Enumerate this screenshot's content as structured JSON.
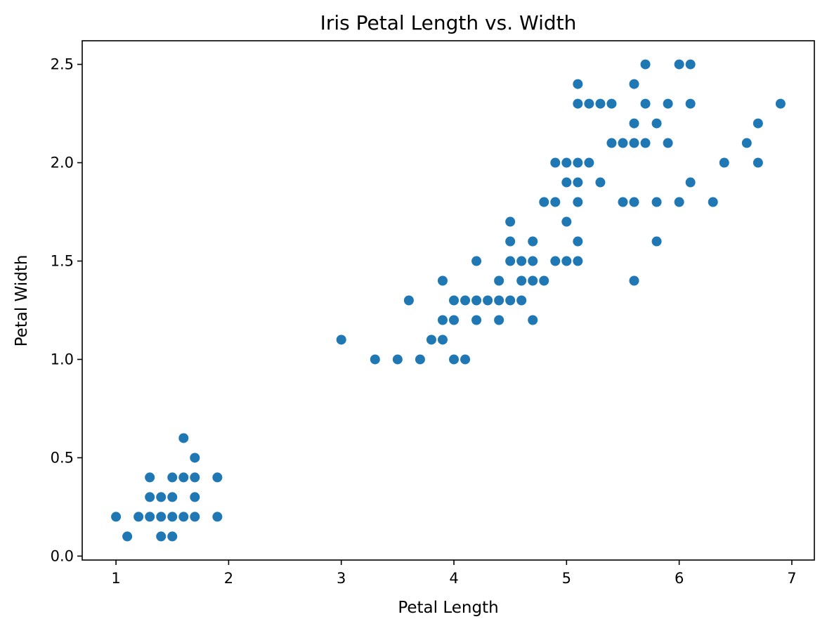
{
  "chart_data": {
    "type": "scatter",
    "title": "Iris Petal Length vs. Width",
    "xlabel": "Petal Length",
    "ylabel": "Petal Width",
    "xlim": [
      0.7,
      7.2
    ],
    "ylim": [
      -0.02,
      2.62
    ],
    "xticks": [
      1,
      2,
      3,
      4,
      5,
      6,
      7
    ],
    "xtick_labels": [
      "1",
      "2",
      "3",
      "4",
      "5",
      "6",
      "7"
    ],
    "yticks": [
      0.0,
      0.5,
      1.0,
      1.5,
      2.0,
      2.5
    ],
    "ytick_labels": [
      "0.0",
      "0.5",
      "1.0",
      "1.5",
      "2.0",
      "2.5"
    ],
    "grid": false,
    "marker_color": "#1f77b4",
    "points": [
      [
        1.0,
        0.2
      ],
      [
        1.1,
        0.1
      ],
      [
        1.2,
        0.2
      ],
      [
        1.3,
        0.2
      ],
      [
        1.3,
        0.3
      ],
      [
        1.3,
        0.4
      ],
      [
        1.4,
        0.1
      ],
      [
        1.4,
        0.2
      ],
      [
        1.4,
        0.3
      ],
      [
        1.5,
        0.1
      ],
      [
        1.5,
        0.2
      ],
      [
        1.5,
        0.3
      ],
      [
        1.5,
        0.4
      ],
      [
        1.6,
        0.2
      ],
      [
        1.6,
        0.4
      ],
      [
        1.6,
        0.6
      ],
      [
        1.7,
        0.2
      ],
      [
        1.7,
        0.3
      ],
      [
        1.7,
        0.4
      ],
      [
        1.7,
        0.5
      ],
      [
        1.9,
        0.2
      ],
      [
        1.9,
        0.4
      ],
      [
        3.0,
        1.1
      ],
      [
        3.3,
        1.0
      ],
      [
        3.5,
        1.0
      ],
      [
        3.6,
        1.3
      ],
      [
        3.7,
        1.0
      ],
      [
        3.8,
        1.1
      ],
      [
        3.9,
        1.1
      ],
      [
        3.9,
        1.2
      ],
      [
        3.9,
        1.4
      ],
      [
        4.0,
        1.0
      ],
      [
        4.0,
        1.2
      ],
      [
        4.0,
        1.3
      ],
      [
        4.1,
        1.0
      ],
      [
        4.1,
        1.3
      ],
      [
        4.2,
        1.2
      ],
      [
        4.2,
        1.3
      ],
      [
        4.2,
        1.5
      ],
      [
        4.3,
        1.3
      ],
      [
        4.4,
        1.2
      ],
      [
        4.4,
        1.3
      ],
      [
        4.4,
        1.4
      ],
      [
        4.5,
        1.3
      ],
      [
        4.5,
        1.5
      ],
      [
        4.5,
        1.6
      ],
      [
        4.5,
        1.7
      ],
      [
        4.6,
        1.3
      ],
      [
        4.6,
        1.4
      ],
      [
        4.6,
        1.5
      ],
      [
        4.7,
        1.2
      ],
      [
        4.7,
        1.4
      ],
      [
        4.7,
        1.5
      ],
      [
        4.7,
        1.6
      ],
      [
        4.8,
        1.4
      ],
      [
        4.8,
        1.8
      ],
      [
        4.9,
        1.5
      ],
      [
        4.9,
        1.8
      ],
      [
        4.9,
        2.0
      ],
      [
        5.0,
        1.5
      ],
      [
        5.0,
        1.7
      ],
      [
        5.0,
        1.9
      ],
      [
        5.0,
        2.0
      ],
      [
        5.1,
        1.5
      ],
      [
        5.1,
        1.6
      ],
      [
        5.1,
        1.8
      ],
      [
        5.1,
        1.9
      ],
      [
        5.1,
        2.0
      ],
      [
        5.1,
        2.3
      ],
      [
        5.1,
        2.4
      ],
      [
        5.2,
        2.0
      ],
      [
        5.2,
        2.3
      ],
      [
        5.3,
        1.9
      ],
      [
        5.3,
        2.3
      ],
      [
        5.4,
        2.1
      ],
      [
        5.4,
        2.3
      ],
      [
        5.5,
        1.8
      ],
      [
        5.5,
        2.1
      ],
      [
        5.6,
        1.4
      ],
      [
        5.6,
        1.8
      ],
      [
        5.6,
        2.1
      ],
      [
        5.6,
        2.2
      ],
      [
        5.6,
        2.4
      ],
      [
        5.7,
        2.1
      ],
      [
        5.7,
        2.3
      ],
      [
        5.7,
        2.5
      ],
      [
        5.8,
        1.6
      ],
      [
        5.8,
        1.8
      ],
      [
        5.8,
        2.2
      ],
      [
        5.9,
        2.1
      ],
      [
        5.9,
        2.3
      ],
      [
        6.0,
        1.8
      ],
      [
        6.0,
        2.5
      ],
      [
        6.1,
        1.9
      ],
      [
        6.1,
        2.3
      ],
      [
        6.1,
        2.5
      ],
      [
        6.3,
        1.8
      ],
      [
        6.4,
        2.0
      ],
      [
        6.6,
        2.1
      ],
      [
        6.7,
        2.0
      ],
      [
        6.7,
        2.2
      ],
      [
        6.9,
        2.3
      ]
    ]
  }
}
